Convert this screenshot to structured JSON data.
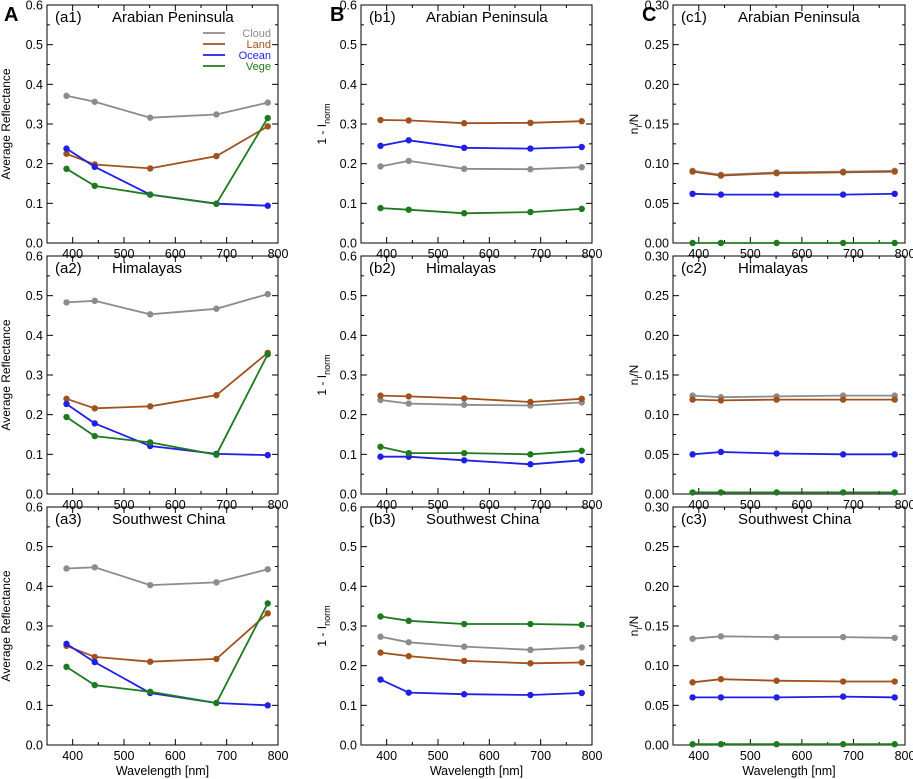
{
  "figure": {
    "column_labels": [
      "A",
      "B",
      "C"
    ],
    "legend": {
      "location": "top-right of panel a1",
      "entries": [
        {
          "name": "Cloud",
          "color": "#8c8c8c"
        },
        {
          "name": "Land",
          "color": "#a0521e"
        },
        {
          "name": "Ocean",
          "color": "#1f1fe6"
        },
        {
          "name": "Vege",
          "color": "#1e7a1e"
        }
      ]
    }
  },
  "chart_data": [
    {
      "id": "a1",
      "type": "line",
      "title": "(a1)",
      "region": "Arabian Peninsula",
      "ylabel": "Average Reflectance",
      "xlabel": "",
      "ylim": [
        0,
        0.6
      ],
      "yticks": [
        "0.0",
        "0.1",
        "0.2",
        "0.3",
        "0.4",
        "0.5",
        "0.6"
      ],
      "xlim": [
        350,
        800
      ],
      "xticks": [
        "400",
        "500",
        "600",
        "700",
        "800"
      ],
      "x": [
        388,
        443,
        551,
        680,
        780
      ],
      "series": [
        {
          "name": "Cloud",
          "values": [
            0.371,
            0.356,
            0.316,
            0.324,
            0.354
          ]
        },
        {
          "name": "Land",
          "values": [
            0.225,
            0.198,
            0.188,
            0.219,
            0.294
          ]
        },
        {
          "name": "Ocean",
          "values": [
            0.238,
            0.192,
            0.122,
            0.099,
            0.094
          ]
        },
        {
          "name": "Vege",
          "values": [
            0.187,
            0.144,
            0.122,
            0.099,
            0.315
          ]
        }
      ]
    },
    {
      "id": "b1",
      "type": "line",
      "title": "(b1)",
      "region": "Arabian Peninsula",
      "ylabel": "1 - I",
      "ylabel_sub": "norm",
      "xlabel": "",
      "ylim": [
        0,
        0.6
      ],
      "yticks": [
        "0.0",
        "0.1",
        "0.2",
        "0.3",
        "0.4",
        "0.5",
        "0.6"
      ],
      "xlim": [
        350,
        800
      ],
      "xticks": [
        "400",
        "500",
        "600",
        "700",
        "800"
      ],
      "x": [
        388,
        443,
        551,
        680,
        780
      ],
      "series": [
        {
          "name": "Cloud",
          "values": [
            0.193,
            0.207,
            0.187,
            0.186,
            0.191
          ]
        },
        {
          "name": "Land",
          "values": [
            0.31,
            0.309,
            0.302,
            0.303,
            0.307
          ]
        },
        {
          "name": "Ocean",
          "values": [
            0.245,
            0.259,
            0.24,
            0.238,
            0.242
          ]
        },
        {
          "name": "Vege",
          "values": [
            0.088,
            0.084,
            0.075,
            0.078,
            0.086
          ]
        }
      ]
    },
    {
      "id": "c1",
      "type": "line",
      "title": "(c1)",
      "region": "Arabian Peninsula",
      "ylabel": "n",
      "ylabel_sub": "i",
      "ylabel_tail": "/N",
      "xlabel": "",
      "ylim": [
        0,
        0.3
      ],
      "yticks": [
        "0.00",
        "0.05",
        "0.10",
        "0.15",
        "0.20",
        "0.25",
        "0.30"
      ],
      "xlim": [
        350,
        800
      ],
      "xticks": [
        "400",
        "500",
        "600",
        "700",
        "800"
      ],
      "x": [
        388,
        443,
        551,
        680,
        780
      ],
      "series": [
        {
          "name": "Cloud",
          "values": [
            0.091,
            0.086,
            0.089,
            0.09,
            0.091
          ]
        },
        {
          "name": "Land",
          "values": [
            0.09,
            0.085,
            0.088,
            0.089,
            0.09
          ]
        },
        {
          "name": "Ocean",
          "values": [
            0.062,
            0.061,
            0.061,
            0.061,
            0.062
          ]
        },
        {
          "name": "Vege",
          "values": [
            0.0,
            0.0,
            0.0,
            0.0,
            0.0
          ]
        }
      ]
    },
    {
      "id": "a2",
      "type": "line",
      "title": "(a2)",
      "region": "Himalayas",
      "ylabel": "Average Reflectance",
      "xlabel": "",
      "ylim": [
        0,
        0.6
      ],
      "yticks": [
        "0.0",
        "0.1",
        "0.2",
        "0.3",
        "0.4",
        "0.5",
        "0.6"
      ],
      "xlim": [
        350,
        800
      ],
      "xticks": [
        "400",
        "500",
        "600",
        "700",
        "800"
      ],
      "x": [
        388,
        443,
        551,
        680,
        780
      ],
      "series": [
        {
          "name": "Cloud",
          "values": [
            0.483,
            0.487,
            0.453,
            0.467,
            0.504
          ]
        },
        {
          "name": "Land",
          "values": [
            0.24,
            0.216,
            0.221,
            0.249,
            0.356
          ]
        },
        {
          "name": "Ocean",
          "values": [
            0.227,
            0.178,
            0.121,
            0.101,
            0.098
          ]
        },
        {
          "name": "Vege",
          "values": [
            0.194,
            0.146,
            0.13,
            0.099,
            0.352
          ]
        }
      ]
    },
    {
      "id": "b2",
      "type": "line",
      "title": "(b2)",
      "region": "Himalayas",
      "ylabel": "1 - I",
      "ylabel_sub": "norm",
      "xlabel": "",
      "ylim": [
        0,
        0.6
      ],
      "yticks": [
        "0.0",
        "0.1",
        "0.2",
        "0.3",
        "0.4",
        "0.5",
        "0.6"
      ],
      "xlim": [
        350,
        800
      ],
      "xticks": [
        "400",
        "500",
        "600",
        "700",
        "800"
      ],
      "x": [
        388,
        443,
        551,
        680,
        780
      ],
      "series": [
        {
          "name": "Cloud",
          "values": [
            0.237,
            0.228,
            0.225,
            0.223,
            0.231
          ]
        },
        {
          "name": "Land",
          "values": [
            0.248,
            0.246,
            0.241,
            0.232,
            0.24
          ]
        },
        {
          "name": "Ocean",
          "values": [
            0.094,
            0.094,
            0.085,
            0.075,
            0.085
          ]
        },
        {
          "name": "Vege",
          "values": [
            0.119,
            0.103,
            0.103,
            0.1,
            0.109
          ]
        }
      ]
    },
    {
      "id": "c2",
      "type": "line",
      "title": "(c2)",
      "region": "Himalayas",
      "ylabel": "n",
      "ylabel_sub": "i",
      "ylabel_tail": "/N",
      "xlabel": "",
      "ylim": [
        0,
        0.3
      ],
      "yticks": [
        "0.00",
        "0.05",
        "0.10",
        "0.15",
        "0.20",
        "0.25",
        "0.30"
      ],
      "xlim": [
        350,
        800
      ],
      "xticks": [
        "400",
        "500",
        "600",
        "700",
        "800"
      ],
      "x": [
        388,
        443,
        551,
        680,
        780
      ],
      "series": [
        {
          "name": "Cloud",
          "values": [
            0.124,
            0.122,
            0.123,
            0.124,
            0.124
          ]
        },
        {
          "name": "Land",
          "values": [
            0.119,
            0.118,
            0.119,
            0.119,
            0.119
          ]
        },
        {
          "name": "Ocean",
          "values": [
            0.05,
            0.053,
            0.051,
            0.05,
            0.05
          ]
        },
        {
          "name": "Vege",
          "values": [
            0.002,
            0.002,
            0.002,
            0.002,
            0.002
          ]
        }
      ]
    },
    {
      "id": "a3",
      "type": "line",
      "title": "(a3)",
      "region": "Southwest China",
      "ylabel": "Average Reflectance",
      "xlabel": "Wavelength [nm]",
      "ylim": [
        0,
        0.6
      ],
      "yticks": [
        "0.0",
        "0.1",
        "0.2",
        "0.3",
        "0.4",
        "0.5",
        "0.6"
      ],
      "xlim": [
        350,
        800
      ],
      "xticks": [
        "400",
        "500",
        "600",
        "700",
        "800"
      ],
      "x": [
        388,
        443,
        551,
        680,
        780
      ],
      "series": [
        {
          "name": "Cloud",
          "values": [
            0.445,
            0.448,
            0.403,
            0.41,
            0.443
          ]
        },
        {
          "name": "Land",
          "values": [
            0.25,
            0.222,
            0.21,
            0.217,
            0.332
          ]
        },
        {
          "name": "Ocean",
          "values": [
            0.255,
            0.209,
            0.131,
            0.106,
            0.1
          ]
        },
        {
          "name": "Vege",
          "values": [
            0.197,
            0.151,
            0.134,
            0.106,
            0.357
          ]
        }
      ]
    },
    {
      "id": "b3",
      "type": "line",
      "title": "(b3)",
      "region": "Southwest China",
      "ylabel": "1 - I",
      "ylabel_sub": "norm",
      "xlabel": "Wavelength [nm]",
      "ylim": [
        0,
        0.6
      ],
      "yticks": [
        "0.0",
        "0.1",
        "0.2",
        "0.3",
        "0.4",
        "0.5",
        "0.6"
      ],
      "xlim": [
        350,
        800
      ],
      "xticks": [
        "400",
        "500",
        "600",
        "700",
        "800"
      ],
      "x": [
        388,
        443,
        551,
        680,
        780
      ],
      "series": [
        {
          "name": "Cloud",
          "values": [
            0.273,
            0.259,
            0.248,
            0.24,
            0.246
          ]
        },
        {
          "name": "Land",
          "values": [
            0.233,
            0.224,
            0.212,
            0.206,
            0.208
          ]
        },
        {
          "name": "Ocean",
          "values": [
            0.165,
            0.132,
            0.128,
            0.126,
            0.131
          ]
        },
        {
          "name": "Vege",
          "values": [
            0.324,
            0.313,
            0.305,
            0.305,
            0.303
          ]
        }
      ]
    },
    {
      "id": "c3",
      "type": "line",
      "title": "(c3)",
      "region": "Southwest China",
      "ylabel": "n",
      "ylabel_sub": "i",
      "ylabel_tail": "/N",
      "xlabel": "Wavelength [nm]",
      "ylim": [
        0,
        0.3
      ],
      "yticks": [
        "0.00",
        "0.05",
        "0.10",
        "0.15",
        "0.20",
        "0.25",
        "0.30"
      ],
      "xlim": [
        350,
        800
      ],
      "xticks": [
        "400",
        "500",
        "600",
        "700",
        "800"
      ],
      "x": [
        388,
        443,
        551,
        680,
        780
      ],
      "series": [
        {
          "name": "Cloud",
          "values": [
            0.134,
            0.137,
            0.136,
            0.136,
            0.135
          ]
        },
        {
          "name": "Land",
          "values": [
            0.079,
            0.083,
            0.081,
            0.08,
            0.08
          ]
        },
        {
          "name": "Ocean",
          "values": [
            0.06,
            0.06,
            0.06,
            0.061,
            0.06
          ]
        },
        {
          "name": "Vege",
          "values": [
            0.001,
            0.001,
            0.001,
            0.001,
            0.001
          ]
        }
      ]
    }
  ]
}
